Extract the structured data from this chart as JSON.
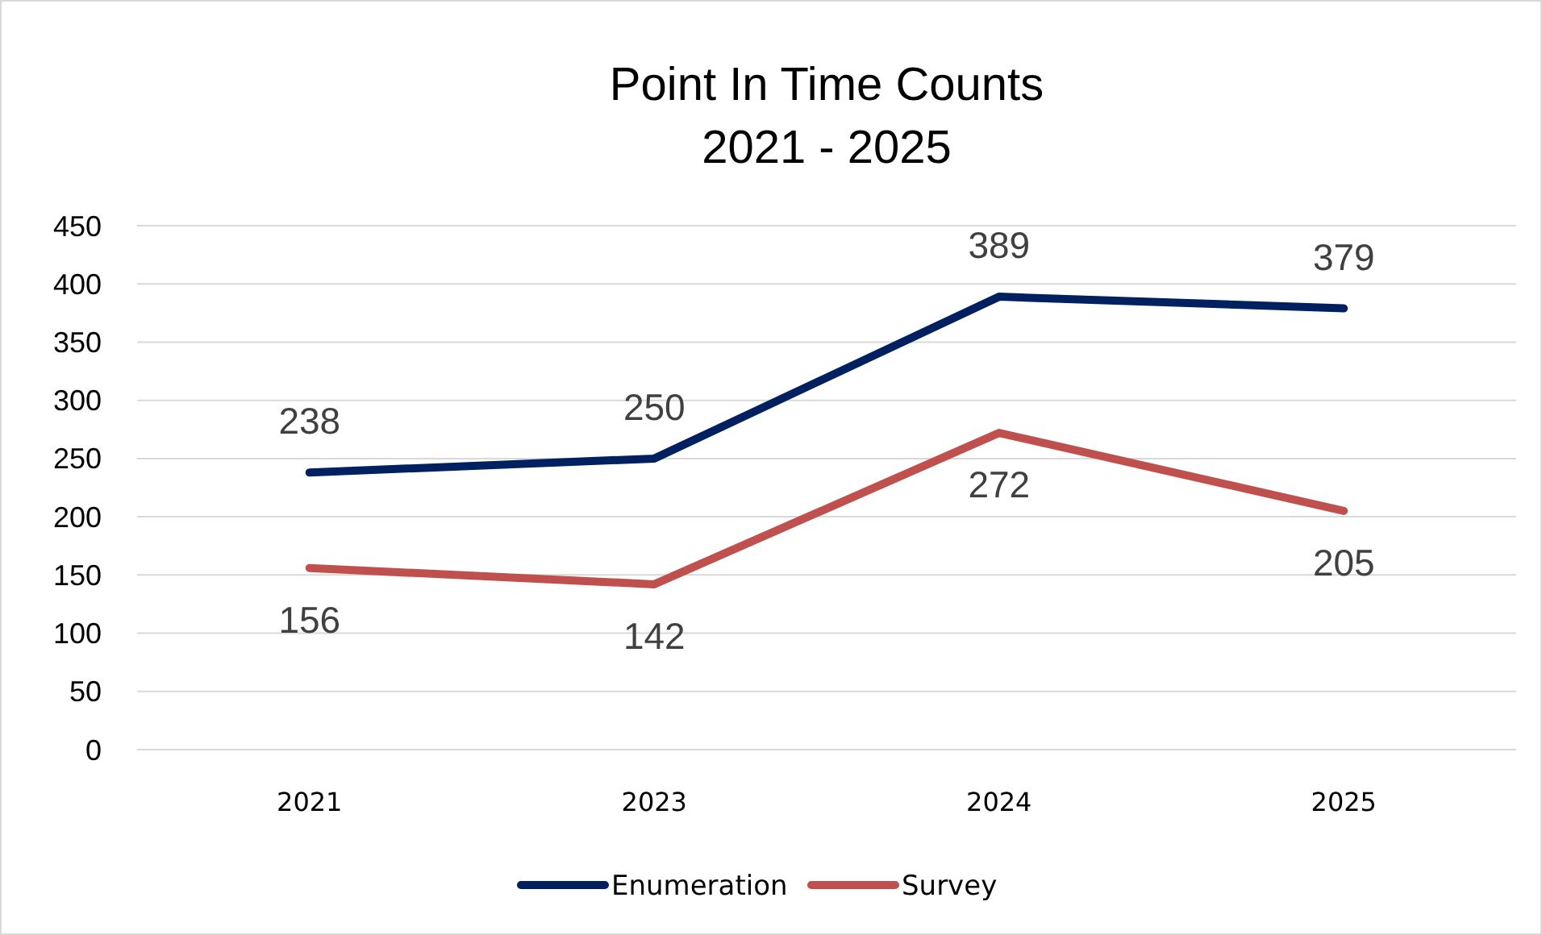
{
  "chart_data": {
    "type": "line",
    "title": "Point In Time Counts",
    "subtitle": "2021 - 2025",
    "categories": [
      "2021",
      "2023",
      "2024",
      "2025"
    ],
    "series": [
      {
        "name": "Enumeration",
        "color": "#002060",
        "values": [
          238,
          250,
          389,
          379
        ]
      },
      {
        "name": "Survey",
        "color": "#c0504d",
        "values": [
          156,
          142,
          272,
          205
        ]
      }
    ],
    "ylim": [
      0,
      450
    ],
    "yticks": [
      0,
      50,
      100,
      150,
      200,
      250,
      300,
      350,
      400,
      450
    ],
    "grid": "y",
    "legend": "bottom",
    "data_labels": true,
    "marker": "none"
  }
}
